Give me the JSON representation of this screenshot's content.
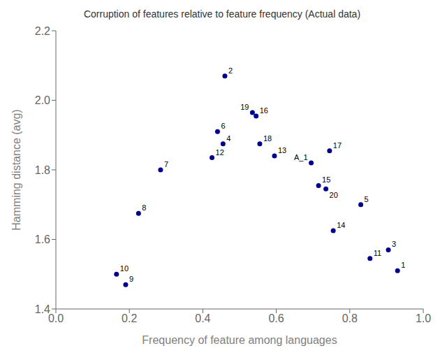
{
  "chart_data": {
    "type": "scatter",
    "title": "Corruption of features relative to feature frequency (Actual data)",
    "xlabel": "Frequency of feature among languages",
    "ylabel": "Hamming distance (avg)",
    "xlim": [
      0.0,
      1.0
    ],
    "ylim": [
      1.4,
      2.2
    ],
    "xticks": [
      {
        "value": 0.0,
        "label": "0.0"
      },
      0.2,
      0.4,
      0.6,
      0.8,
      {
        "value": 1.0,
        "label": "1.0"
      }
    ],
    "yticks": [
      1.4,
      1.6,
      1.8,
      {
        "value": 2.0,
        "label": "2.0"
      },
      2.2
    ],
    "color": "#00008B",
    "grid": false,
    "labels": [
      "1",
      "2",
      "3",
      "4",
      "5",
      "6",
      "7",
      "8",
      "9",
      "10",
      "11",
      "12",
      "13",
      "14",
      "15",
      "16",
      "17",
      "18",
      "19",
      "20",
      "A_1"
    ],
    "x": [
      0.93,
      0.46,
      0.905,
      0.455,
      0.83,
      0.44,
      0.285,
      0.225,
      0.19,
      0.165,
      0.855,
      0.425,
      0.595,
      0.755,
      0.715,
      0.545,
      0.745,
      0.555,
      0.535,
      0.735,
      0.695
    ],
    "values": [
      1.51,
      2.07,
      1.57,
      1.875,
      1.7,
      1.91,
      1.8,
      1.675,
      1.47,
      1.5,
      1.545,
      1.835,
      1.84,
      1.625,
      1.755,
      1.955,
      1.855,
      1.875,
      1.965,
      1.745,
      1.82
    ]
  }
}
